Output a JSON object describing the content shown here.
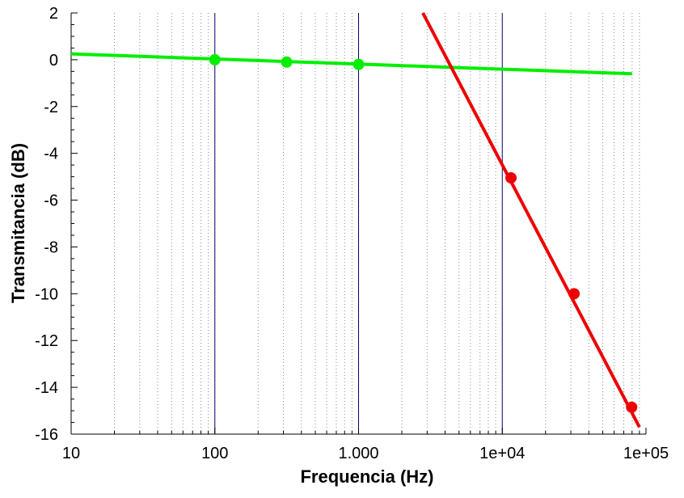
{
  "chart_data": {
    "type": "line",
    "xlabel": "Frequencia (Hz)",
    "ylabel": "Transmitancia (dB)",
    "x_scale": "log",
    "xlim": [
      10,
      100000
    ],
    "ylim": [
      -16,
      2
    ],
    "x_ticks": [
      {
        "value": 10,
        "label": "10"
      },
      {
        "value": 100,
        "label": "100"
      },
      {
        "value": 1000,
        "label": "1.000"
      },
      {
        "value": 10000,
        "label": "1e+04"
      },
      {
        "value": 100000,
        "label": "1e+05"
      }
    ],
    "y_ticks": [
      {
        "value": 2,
        "label": "2"
      },
      {
        "value": 0,
        "label": "0"
      },
      {
        "value": -2,
        "label": "-2"
      },
      {
        "value": -4,
        "label": "-4"
      },
      {
        "value": -6,
        "label": "-6"
      },
      {
        "value": -8,
        "label": "-8"
      },
      {
        "value": -10,
        "label": "-10"
      },
      {
        "value": -12,
        "label": "-12"
      },
      {
        "value": -14,
        "label": "-14"
      },
      {
        "value": -16,
        "label": "-16"
      }
    ],
    "grid": {
      "minor_x": "dotted",
      "major_x": "solid"
    },
    "series": [
      {
        "color": "#00ee00",
        "line": {
          "x": [
            10,
            80000
          ],
          "y": [
            0.25,
            -0.6
          ]
        },
        "points": {
          "x": [
            100,
            316,
            1000
          ],
          "y": [
            0.0,
            -0.1,
            -0.2
          ]
        }
      },
      {
        "color": "#ee0000",
        "line": {
          "x": [
            2800,
            90000
          ],
          "y": [
            2.0,
            -15.7
          ]
        },
        "points": {
          "x": [
            11500,
            31600,
            79500
          ],
          "y": [
            -5.05,
            -10.0,
            -14.85
          ]
        }
      }
    ]
  }
}
